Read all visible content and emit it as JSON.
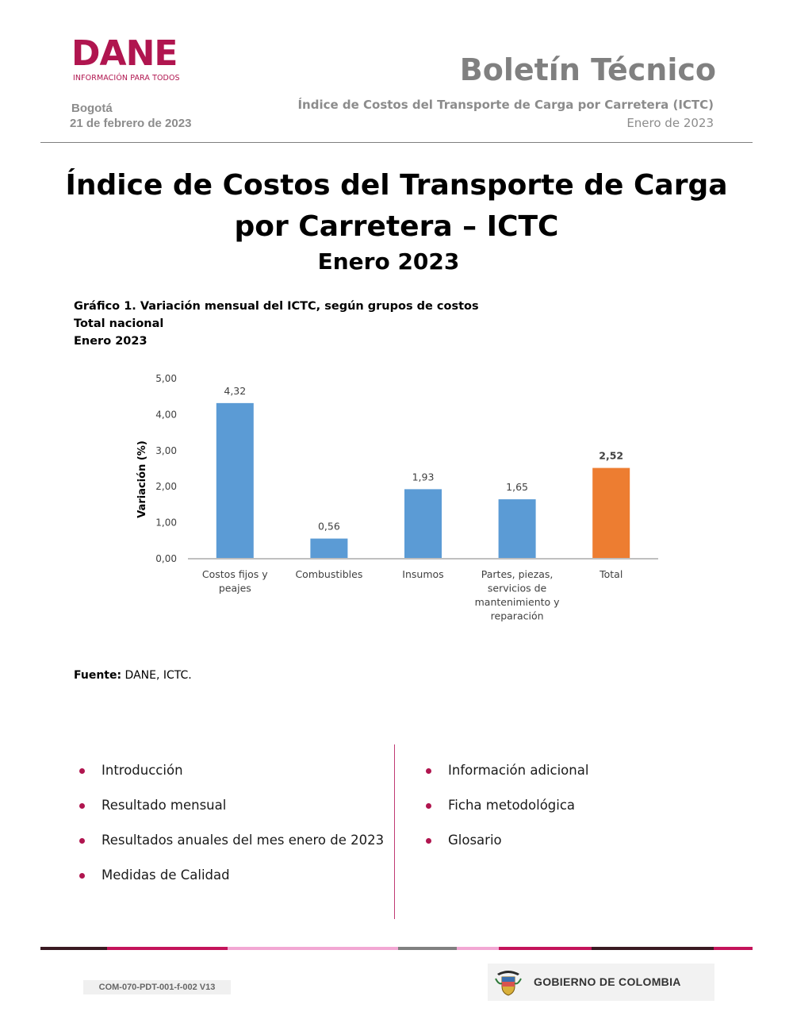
{
  "header": {
    "logo_text": "DANE",
    "logo_tagline": "INFORMACIÓN PARA TODOS",
    "city": "Bogotá",
    "date": "21 de febrero de 2023",
    "bulletin": "Boletín Técnico",
    "subtitle": "Índice de Costos del Transporte de Carga por Carretera (ICTC)",
    "period": "Enero de 2023"
  },
  "main": {
    "title_line1": "Índice de Costos del Transporte de Carga",
    "title_line2": "por Carretera – ICTC",
    "period": "Enero 2023"
  },
  "chart_caption": {
    "line1": "Gráfico 1. Variación mensual del ICTC, según grupos de costos",
    "line2": "Total nacional",
    "line3": "Enero 2023"
  },
  "chart_data": {
    "type": "bar",
    "categories": [
      [
        "Costos fijos y",
        "peajes"
      ],
      [
        "Combustibles"
      ],
      [
        "Insumos"
      ],
      [
        "Partes, piezas,",
        "servicios de",
        "mantenimiento y",
        "reparación"
      ],
      [
        "Total"
      ]
    ],
    "values": [
      4.32,
      0.56,
      1.93,
      1.65,
      2.52
    ],
    "value_labels": [
      "4,32",
      "0,56",
      "1,93",
      "1,65",
      "2,52"
    ],
    "colors": [
      "#5b9bd5",
      "#5b9bd5",
      "#5b9bd5",
      "#5b9bd5",
      "#ed7d31"
    ],
    "ylabel": "Variación (%)",
    "ylim": [
      0,
      5
    ],
    "yticks": [
      "0,00",
      "1,00",
      "2,00",
      "3,00",
      "4,00",
      "5,00"
    ],
    "grid": false
  },
  "source": {
    "label": "Fuente:",
    "text": " DANE, ICTC."
  },
  "toc": {
    "left": [
      "Introducción",
      "Resultado mensual",
      "Resultados anuales del mes enero de 2023",
      "Medidas de Calidad"
    ],
    "right": [
      "Información adicional",
      "Ficha metodológica",
      "Glosario"
    ]
  },
  "footer": {
    "code": "COM-070-PDT-001-f-002 V13",
    "government": "GOBIERNO DE COLOMBIA"
  },
  "colors": {
    "brand": "#b0154f",
    "bar": "#5b9bd5",
    "total_bar": "#ed7d31"
  }
}
